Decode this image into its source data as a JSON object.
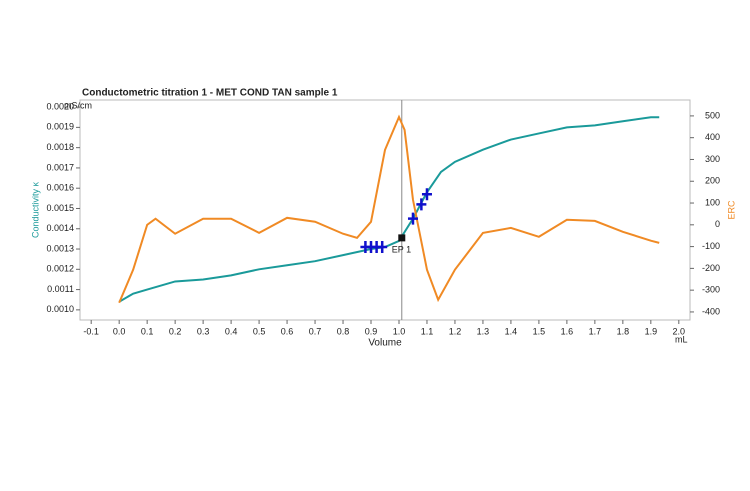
{
  "chart_data": {
    "type": "line",
    "title": "Conductometric titration 1 - MET COND TAN sample 1",
    "x_label": "Volume",
    "x_unit": "mL",
    "y_label": "Conductivity κ",
    "y_unit": "mS/cm",
    "y2_label": "ERC",
    "annotation": "EP 1",
    "ep_x": 1.01,
    "ep_y": 0.001355,
    "xlim": [
      -0.14,
      2.04
    ],
    "xticks": [
      -0.1,
      {
        "value": 0,
        "label": "0.0"
      },
      0.1,
      0.2,
      0.3,
      0.4,
      0.5,
      0.6,
      0.7,
      0.8,
      0.9,
      {
        "value": 1,
        "label": "1.0"
      },
      1.1,
      1.2,
      1.3,
      1.4,
      1.5,
      1.6,
      1.7,
      1.8,
      1.9,
      {
        "value": 2,
        "label": "2.0"
      }
    ],
    "ylim": [
      0.00095,
      0.002035
    ],
    "yticks": [
      {
        "value": 0.001,
        "label": "0.0010"
      },
      0.0011,
      0.0012,
      0.0013,
      0.0014,
      0.0015,
      0.0016,
      0.0017,
      0.0018,
      0.0019,
      {
        "value": 0.002,
        "label": "0.0020"
      }
    ],
    "y2lim": [
      -437,
      573
    ],
    "y2ticks": [
      -400,
      -300,
      -200,
      -100,
      0,
      100,
      200,
      300,
      400,
      500
    ],
    "series": [
      {
        "color": "#1a9a9a",
        "x": [
          0.0,
          0.05,
          0.1,
          0.2,
          0.3,
          0.4,
          0.5,
          0.6,
          0.7,
          0.8,
          0.9,
          0.95,
          1.0,
          1.05,
          1.1,
          1.15,
          1.2,
          1.3,
          1.4,
          1.5,
          1.6,
          1.7,
          1.8,
          1.9,
          1.93
        ],
        "values": [
          0.00104,
          0.00108,
          0.0011,
          0.00114,
          0.00115,
          0.00117,
          0.0012,
          0.00122,
          0.00124,
          0.00127,
          0.0013,
          0.00131,
          0.00134,
          0.00145,
          0.00158,
          0.00168,
          0.00173,
          0.00179,
          0.00184,
          0.00187,
          0.0019,
          0.00191,
          0.00193,
          0.00195,
          0.00195
        ]
      },
      {
        "color": "#f08a24",
        "axis": "y2",
        "x": [
          0.0,
          0.05,
          0.1,
          0.13,
          0.2,
          0.3,
          0.4,
          0.5,
          0.6,
          0.7,
          0.8,
          0.85,
          0.9,
          0.95,
          1.0,
          1.02,
          1.05,
          1.1,
          1.14,
          1.2,
          1.3,
          1.4,
          1.5,
          1.6,
          1.7,
          1.8,
          1.9,
          1.93
        ],
        "values": [
          -358,
          -206,
          0,
          28,
          -41,
          28,
          28,
          -37,
          32,
          14,
          -41,
          -60,
          14,
          344,
          495,
          436,
          115,
          -206,
          -344,
          -206,
          -37,
          -14,
          -55,
          23,
          18,
          -32,
          -73,
          -83
        ]
      },
      {
        "color": "#1010cc",
        "x": [
          0.88,
          0.9,
          0.92,
          0.94,
          1.05,
          1.08,
          1.1
        ],
        "values": [
          0.00131,
          0.00131,
          0.00131,
          0.00131,
          0.00145,
          0.00152,
          0.00157
        ]
      }
    ]
  }
}
